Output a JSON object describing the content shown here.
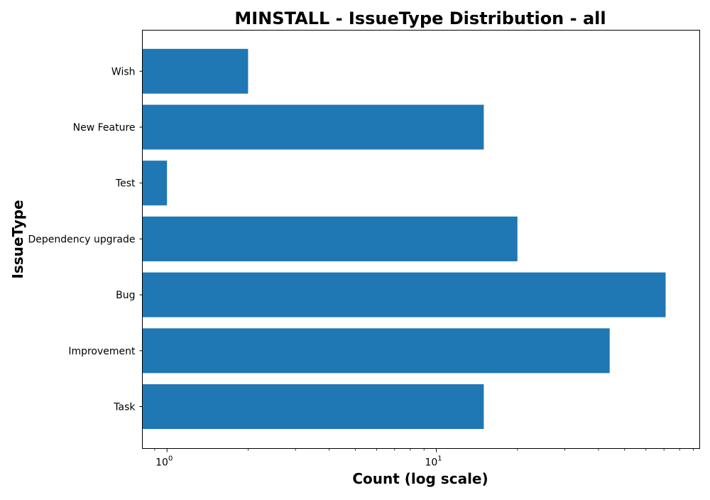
{
  "chart_data": {
    "type": "bar",
    "orientation": "horizontal",
    "title": "MINSTALL - IssueType Distribution - all",
    "xlabel": "Count (log scale)",
    "ylabel": "IssueType",
    "x_scale": "log",
    "xlim": [
      0.81,
      95
    ],
    "categories": [
      "Task",
      "Improvement",
      "Bug",
      "Dependency upgrade",
      "Test",
      "New Feature",
      "Wish"
    ],
    "values": [
      15,
      44,
      71,
      20,
      1,
      15,
      2
    ],
    "x_ticks": [
      {
        "value": 1,
        "base": "10",
        "exponent": "0"
      },
      {
        "value": 10,
        "base": "10",
        "exponent": "1"
      }
    ],
    "bar_color": "#1f77b4",
    "grid": false,
    "legend": "none"
  }
}
